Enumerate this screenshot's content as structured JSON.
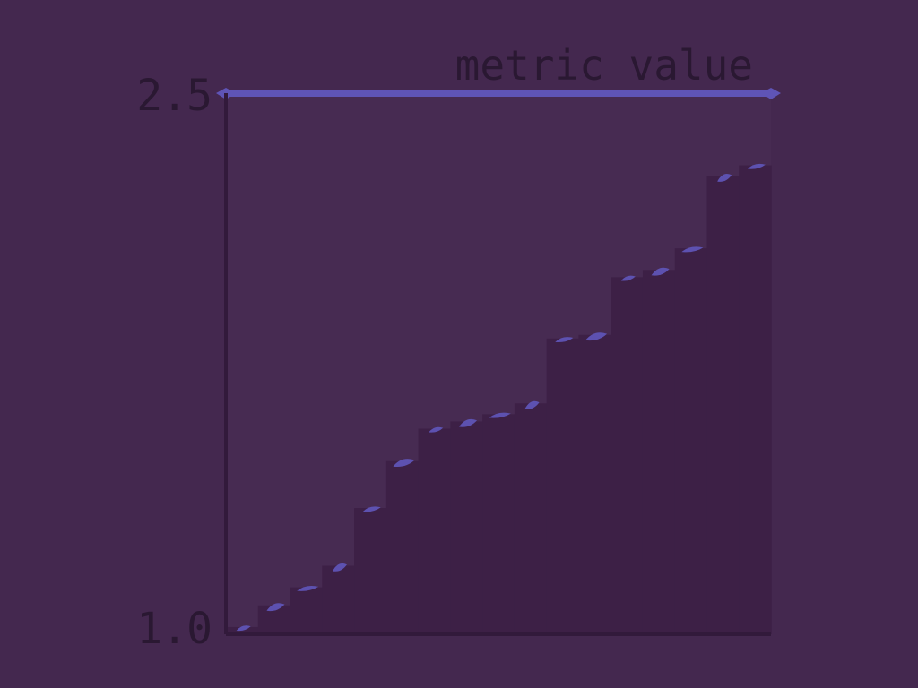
{
  "chart_data": {
    "type": "area",
    "title": "metric value",
    "xlabel": "",
    "ylabel": "",
    "y_tick_labels": [
      "1.0",
      "2.5"
    ],
    "ylim": [
      1.0,
      2.5
    ],
    "grid": false,
    "legend": "none",
    "series": [
      {
        "values": [
          1.02,
          1.08,
          1.13,
          1.19,
          1.35,
          1.48,
          1.57,
          1.59,
          1.61,
          1.64,
          1.82,
          1.83,
          1.99,
          2.01,
          2.07,
          2.27,
          2.3
        ]
      }
    ],
    "upper_band": 2.5,
    "colors": {
      "background": "#44284f",
      "plot_area": "#472b52",
      "fill": "#3d2046",
      "frame": "#321a3b",
      "accent": "#5f54b6",
      "text": "#2a1832"
    }
  }
}
